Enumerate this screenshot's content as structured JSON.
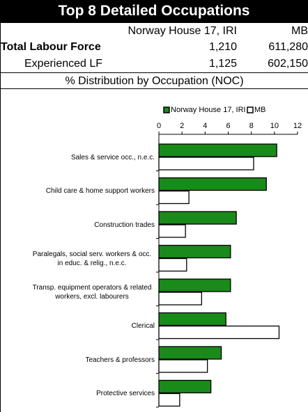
{
  "header": {
    "title": "Top 8 Detailed Occupations",
    "columns": [
      "Norway House 17, IRI",
      "MB"
    ],
    "rows": [
      {
        "label": "Total Labour Force",
        "values": [
          "1,210",
          "611,280"
        ]
      },
      {
        "label": "Experienced LF",
        "values": [
          "1,125",
          "602,150"
        ]
      }
    ],
    "subtitle": "% Distribution by Occupation (NOC)"
  },
  "chart_data": {
    "type": "hbar",
    "categories": [
      "Sales & service occ., n.e.c.",
      "Child care & home support workers",
      "Construction trades",
      "Paralegals, social serv. workers & occ. in educ. & relig., n.e.c.",
      "Transp. equipment operators & related workers, excl. labourers",
      "Clerical",
      "Teachers & professors",
      "Protective services"
    ],
    "series": [
      {
        "name": "Norway House 17, IRI",
        "color": "#1a8a1a",
        "values": [
          10.2,
          9.3,
          6.7,
          6.2,
          6.2,
          5.8,
          5.4,
          4.5
        ]
      },
      {
        "name": "MB",
        "color": "#ffffff",
        "values": [
          8.2,
          2.6,
          2.3,
          2.4,
          3.7,
          10.4,
          4.2,
          1.8
        ]
      }
    ],
    "xlim": [
      0,
      12
    ],
    "xticks": [
      0,
      2,
      4,
      6,
      8,
      10,
      12
    ],
    "grid": false,
    "legend": "top"
  }
}
